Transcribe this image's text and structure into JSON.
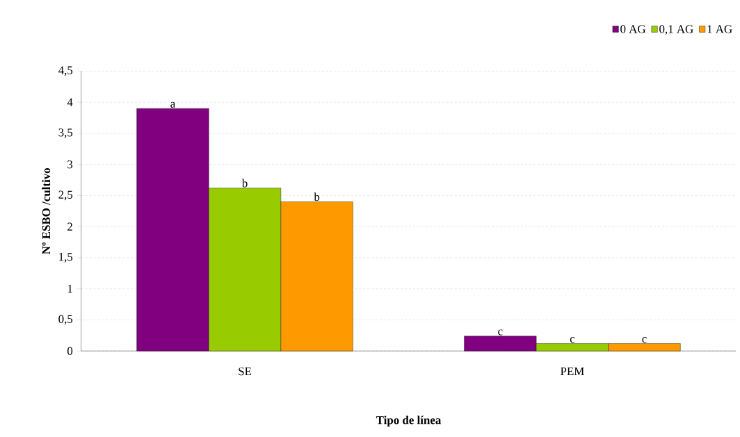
{
  "chart_data": {
    "type": "bar",
    "xlabel": "Tipo de línea",
    "ylabel": "Nº ESBO /cultivo",
    "categories": [
      "SE",
      "PEM"
    ],
    "series": [
      {
        "name": "0 AG",
        "color": "#800080",
        "values": [
          3.9,
          0.24
        ]
      },
      {
        "name": "0,1 AG",
        "color": "#99cc00",
        "values": [
          2.62,
          0.12
        ]
      },
      {
        "name": "1 AG",
        "color": "#ff9900",
        "values": [
          2.4,
          0.12
        ]
      }
    ],
    "ylim": [
      0,
      4.5
    ],
    "yticks": [
      0,
      {
        "value": 0.5,
        "label": "0,5"
      },
      1,
      {
        "value": 1.5,
        "label": "1,5"
      },
      2,
      {
        "value": 2.5,
        "label": "2,5"
      },
      3,
      {
        "value": 3.5,
        "label": "3,5"
      },
      4,
      {
        "value": 4.5,
        "label": "4,5"
      }
    ],
    "grid": "y",
    "legend": "top right",
    "annotations": [
      "a",
      "b",
      "b",
      "c",
      "c",
      "c"
    ]
  }
}
